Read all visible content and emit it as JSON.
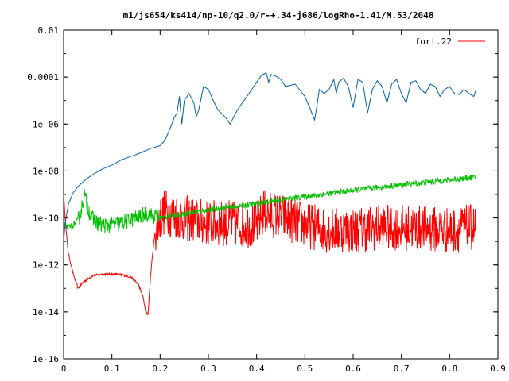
{
  "chart_data": {
    "type": "line",
    "title": "m1/js654/ks414/np-10/q2.0/r-+.34-j686/logRho-1.41/M.53/2048",
    "xlabel": "",
    "ylabel": "",
    "xlim": [
      0,
      0.9
    ],
    "ylim": [
      1e-16,
      0.01
    ],
    "yscale": "log",
    "grid": false,
    "legend_position": "top-right",
    "x_ticks": [
      "0",
      "0.1",
      "0.2",
      "0.3",
      "0.4",
      "0.5",
      "0.6",
      "0.7",
      "0.8",
      "0.9"
    ],
    "y_ticks": [
      "1e-16",
      "1e-14",
      "1e-12",
      "1e-10",
      "1e-08",
      "1e-06",
      "0.0001",
      "0.01"
    ],
    "series": [
      {
        "name": "fort.22",
        "color": "#ff0000",
        "style": "noisy",
        "x": [
          0.0,
          0.005,
          0.01,
          0.02,
          0.03,
          0.04,
          0.06,
          0.08,
          0.1,
          0.12,
          0.14,
          0.155,
          0.165,
          0.17,
          0.175,
          0.18,
          0.185,
          0.19,
          0.2,
          0.21,
          0.22,
          0.25,
          0.3,
          0.35,
          0.4,
          0.415,
          0.42,
          0.45,
          0.5,
          0.55,
          0.6,
          0.65,
          0.7,
          0.75,
          0.8,
          0.855
        ],
        "y": [
          1e-09,
          3e-11,
          3e-12,
          4e-13,
          1e-13,
          1.8e-13,
          3.5e-13,
          4e-13,
          4e-13,
          3.8e-13,
          3e-13,
          1.5e-13,
          4e-14,
          1e-14,
          8e-15,
          3e-13,
          4e-12,
          3e-11,
          1e-10,
          2e-10,
          1.5e-10,
          1e-10,
          6e-11,
          6e-11,
          5e-11,
          2e-10,
          1.5e-10,
          1.2e-10,
          5e-11,
          3e-11,
          3e-11,
          4e-11,
          4e-11,
          3.5e-11,
          3e-11,
          4e-11
        ]
      },
      {
        "name": "",
        "color": "#00c000",
        "style": "noisy",
        "x": [
          0.0,
          0.01,
          0.02,
          0.03,
          0.035,
          0.04,
          0.043,
          0.046,
          0.05,
          0.055,
          0.06,
          0.07,
          0.08,
          0.1,
          0.12,
          0.15,
          0.17,
          0.2,
          0.22,
          0.25,
          0.3,
          0.35,
          0.4,
          0.45,
          0.5,
          0.55,
          0.6,
          0.65,
          0.7,
          0.75,
          0.8,
          0.855
        ],
        "y": [
          5e-11,
          4e-11,
          5e-11,
          8e-11,
          1.5e-10,
          5e-10,
          1e-09,
          6e-10,
          3e-10,
          1.5e-10,
          9e-11,
          6e-11,
          5e-11,
          5e-11,
          6e-11,
          1e-10,
          1.5e-10,
          1e-10,
          1.2e-10,
          1.5e-10,
          2.2e-10,
          3e-10,
          4e-10,
          6e-10,
          8e-10,
          1.1e-09,
          1.5e-09,
          2e-09,
          2.6e-09,
          3.3e-09,
          4.2e-09,
          5.5e-09
        ]
      },
      {
        "name": "",
        "color": "#0060ad",
        "style": "smooth",
        "x": [
          0.0,
          0.003,
          0.005,
          0.01,
          0.02,
          0.03,
          0.04,
          0.05,
          0.06,
          0.08,
          0.1,
          0.12,
          0.15,
          0.18,
          0.2,
          0.21,
          0.22,
          0.23,
          0.235,
          0.24,
          0.245,
          0.25,
          0.26,
          0.27,
          0.275,
          0.28,
          0.29,
          0.3,
          0.31,
          0.32,
          0.335,
          0.345,
          0.36,
          0.38,
          0.4,
          0.41,
          0.42,
          0.425,
          0.43,
          0.44,
          0.45,
          0.46,
          0.48,
          0.5,
          0.51,
          0.52,
          0.525,
          0.53,
          0.54,
          0.55,
          0.56,
          0.565,
          0.57,
          0.58,
          0.59,
          0.6,
          0.61,
          0.62,
          0.63,
          0.64,
          0.65,
          0.66,
          0.67,
          0.68,
          0.69,
          0.7,
          0.71,
          0.72,
          0.73,
          0.74,
          0.75,
          0.76,
          0.77,
          0.78,
          0.79,
          0.8,
          0.81,
          0.82,
          0.83,
          0.84,
          0.85,
          0.855
        ],
        "y": [
          1e-11,
          5e-11,
          1e-10,
          4e-10,
          1.2e-09,
          2.2e-09,
          3.4e-09,
          5e-09,
          7e-09,
          1.2e-08,
          1.8e-08,
          3e-08,
          5e-08,
          9e-08,
          1.2e-07,
          2e-07,
          6e-07,
          2e-06,
          3e-06,
          1.5e-05,
          1e-06,
          1e-05,
          2e-05,
          8e-06,
          2e-06,
          4e-06,
          4e-05,
          3e-05,
          1e-05,
          4e-06,
          2e-06,
          1e-06,
          4e-06,
          1.5e-05,
          6e-05,
          0.00012,
          0.00015,
          6e-05,
          0.00013,
          0.00011,
          8e-05,
          4e-05,
          5e-05,
          1.5e-05,
          5e-06,
          1.5e-06,
          6e-06,
          3e-05,
          2e-05,
          3e-05,
          8e-05,
          2e-05,
          6e-05,
          9e-05,
          4e-05,
          5e-06,
          8e-05,
          6e-05,
          3e-06,
          3e-05,
          7e-05,
          4e-05,
          8e-06,
          5e-05,
          8e-05,
          2e-05,
          8e-06,
          6e-05,
          7e-05,
          3e-05,
          2e-05,
          5e-05,
          4e-05,
          1.5e-05,
          3e-05,
          4e-05,
          2e-05,
          1.8e-05,
          3e-05,
          2e-05,
          1.5e-05,
          3e-05
        ]
      }
    ]
  }
}
